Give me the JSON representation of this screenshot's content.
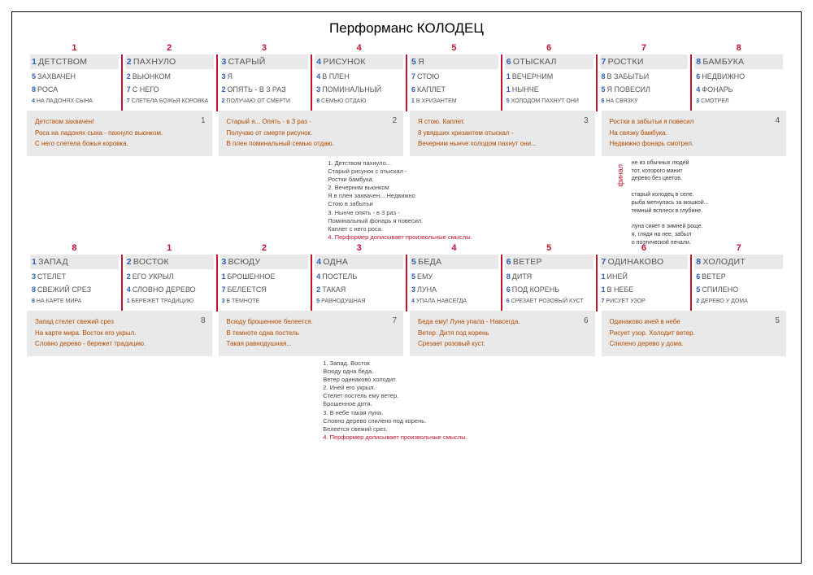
{
  "colors": {
    "red": "#c4122e",
    "blue": "#2a5fb4",
    "grey": "#e9e9e9",
    "brown": "#b04a00",
    "text": "#555555"
  },
  "title": "Перформанс КОЛОДЕЦ",
  "block1": {
    "topnums": [
      "1",
      "2",
      "3",
      "4",
      "5",
      "6",
      "7",
      "8"
    ],
    "cols": [
      {
        "head_n": "1",
        "head": "ДЕТСТВОМ",
        "r1_n": "5",
        "r1": "ЗАХВАЧЕН",
        "r2_n": "8",
        "r2": "РОСА",
        "r3_n": "4",
        "r3": "НА ЛАДОНЯХ СЫНА"
      },
      {
        "head_n": "2",
        "head": "ПАХНУЛО",
        "r1_n": "2",
        "r1": "ВЬЮНКОМ",
        "r2_n": "7",
        "r2": "С НЕГО",
        "r3_n": "7",
        "r3": "СЛЕТЕЛА БОЖЬЯ КОРОВКА"
      },
      {
        "head_n": "3",
        "head": "СТАРЫЙ",
        "r1_n": "3",
        "r1": "Я",
        "r2_n": "2",
        "r2": "ОПЯТЬ - В 3 РАЗ",
        "r3_n": "2",
        "r3": "ПОЛУЧАЮ ОТ СМЕРТИ"
      },
      {
        "head_n": "4",
        "head": "РИСУНОК",
        "r1_n": "4",
        "r1": "В ПЛЕН",
        "r2_n": "3",
        "r2": "ПОМИНАЛЬНЫЙ",
        "r3_n": "8",
        "r3": "СЕМЬЮ ОТДАЮ"
      },
      {
        "head_n": "5",
        "head": "Я",
        "r1_n": "7",
        "r1": "СТОЮ",
        "r2_n": "6",
        "r2": "КАПЛЕТ",
        "r3_n": "1",
        "r3": "В ХРИЗАНТЕМ"
      },
      {
        "head_n": "6",
        "head": "ОТЫСКАЛ",
        "r1_n": "1",
        "r1": "ВЕЧЕРНИМ",
        "r2_n": "1",
        "r2": "НЫНЧЕ",
        "r3_n": "5",
        "r3": "ХОЛОДОМ ПАХНУТ ОНИ"
      },
      {
        "head_n": "7",
        "head": "РОСТКИ",
        "r1_n": "8",
        "r1": "В ЗАБЫТЬИ",
        "r2_n": "5",
        "r2": "Я ПОВЕСИЛ",
        "r3_n": "6",
        "r3": "НА СВЯЗКУ"
      },
      {
        "head_n": "8",
        "head": "БАМБУКА",
        "r1_n": "6",
        "r1": "НЕДВИЖНО",
        "r2_n": "4",
        "r2": "ФОНАРЬ",
        "r3_n": "3",
        "r3": "СМОТРЕЛ"
      }
    ],
    "poems": [
      {
        "n": "1",
        "lines": [
          "Детством захвачен!",
          "Роса на ладонях сына - пахнуло вьюнком.",
          "С него слетела божья коровка."
        ]
      },
      {
        "n": "2",
        "lines": [
          "Старый я... Опять - в 3 раз -",
          "Получаю от смерти рисунок.",
          "В плен поминальный семью отдаю."
        ]
      },
      {
        "n": "3",
        "lines": [
          "Я стою. Каплет.",
          "8 увядших хризантем отыскал -",
          "Вечерним нынче холодом пахнут они..."
        ]
      },
      {
        "n": "4",
        "lines": [
          "Ростки в забытьи я повесил",
          "На связку бамбука.",
          "Недвижно фонарь смотрел."
        ]
      }
    ]
  },
  "midnotes": {
    "lines": [
      "1. Детством пахнуло...",
      "    Старый рисунок с отыскал -",
      "    Ростки бамбука.",
      "2. Вечерним вьюнком",
      "    Я в плен захвачен... Недвижно",
      "    Стою в забытьи",
      "3. Нынче опять - в 3 раз -",
      "    Поминальный фонарь я повесил.",
      "    Каплет с него роса."
    ],
    "redline": "4. Перформер дописывает произвольные смыслы."
  },
  "final": {
    "label": "финал",
    "text": [
      "не из обычных людей",
      "тот, которого манит",
      "дерево без цветов.",
      "",
      "старый колодец в селе.",
      "рыба метнулась за мошкой...",
      "темный всплеск в глубине.",
      "",
      "луна сияет в зимней роще.",
      "я, глядя на нее, забыл",
      "о поэтической печали."
    ]
  },
  "block2": {
    "topnums": [
      "8",
      "1",
      "2",
      "3",
      "4",
      "5",
      "6",
      "7"
    ],
    "cols": [
      {
        "head_n": "1",
        "head": "ЗАПАД",
        "r1_n": "3",
        "r1": "СТЕЛЕТ",
        "r2_n": "8",
        "r2": "СВЕЖИЙ СРЕЗ",
        "r3_n": "8",
        "r3": "НА КАРТЕ МИРА"
      },
      {
        "head_n": "2",
        "head": "ВОСТОК",
        "r1_n": "2",
        "r1": "ЕГО УКРЫЛ",
        "r2_n": "4",
        "r2": "СЛОВНО ДЕРЕВО",
        "r3_n": "1",
        "r3": "БЕРЕЖЕТ ТРАДИЦИЮ"
      },
      {
        "head_n": "3",
        "head": "ВСЮДУ",
        "r1_n": "1",
        "r1": "БРОШЕННОЕ",
        "r2_n": "7",
        "r2": "БЕЛЕЕТСЯ",
        "r3_n": "3",
        "r3": "В ТЕМНОТЕ"
      },
      {
        "head_n": "4",
        "head": "ОДНА",
        "r1_n": "4",
        "r1": "ПОСТЕЛЬ",
        "r2_n": "2",
        "r2": "ТАКАЯ",
        "r3_n": "5",
        "r3": "РАВНОДУШНАЯ"
      },
      {
        "head_n": "5",
        "head": "БЕДА",
        "r1_n": "5",
        "r1": "ЕМУ",
        "r2_n": "3",
        "r2": "ЛУНА",
        "r3_n": "4",
        "r3": "УПАЛА НАВСЕГДА"
      },
      {
        "head_n": "6",
        "head": "ВЕТЕР",
        "r1_n": "8",
        "r1": "ДИТЯ",
        "r2_n": "6",
        "r2": "ПОД КОРЕНЬ",
        "r3_n": "6",
        "r3": "СРЕЗАЕТ РОЗОВЫЙ КУСТ"
      },
      {
        "head_n": "7",
        "head": "ОДИНАКОВО",
        "r1_n": "1",
        "r1": "ИНЕЙ",
        "r2_n": "1",
        "r2": "В НЕБЕ",
        "r3_n": "7",
        "r3": "РИСУЕТ УЗОР"
      },
      {
        "head_n": "8",
        "head": "ХОЛОДИТ",
        "r1_n": "6",
        "r1": "ВЕТЕР",
        "r2_n": "5",
        "r2": "СПИЛЕНО",
        "r3_n": "2",
        "r3": "ДЕРЕВО У ДОМА"
      }
    ],
    "poems": [
      {
        "n": "8",
        "lines": [
          "Запад стелет свежий срез",
          "На карте мира. Восток его укрыл.",
          "Словно дерево - бережет традицию."
        ]
      },
      {
        "n": "7",
        "lines": [
          "Всюду брошенное белеется.",
          "В темноте одна постель",
          "Такая равнодушная..."
        ]
      },
      {
        "n": "6",
        "lines": [
          "Беда ему! Луна упала - Навсегда.",
          "Ветер. Дитя под корень",
          "Срезает розовый куст."
        ]
      },
      {
        "n": "5",
        "lines": [
          "Одинаково иней в небе",
          "Рисует узор. Холодит ветер.",
          "Спилено дерево у дома."
        ]
      }
    ]
  },
  "bottomnotes": {
    "lines": [
      "1. Запад. Восток",
      "    Всюду одна беда.",
      "    Ветер одинаково холодит.",
      "2. Иней его укрыл.",
      "    Стелет постель ему ветер.",
      "    Брошенное дитя.",
      "3. В небе такая луна.",
      "    Словно дерево спилено под корень.",
      "    Белеется свежий срез."
    ],
    "redline": "4. Перформер дописывает произвольные смыслы."
  }
}
